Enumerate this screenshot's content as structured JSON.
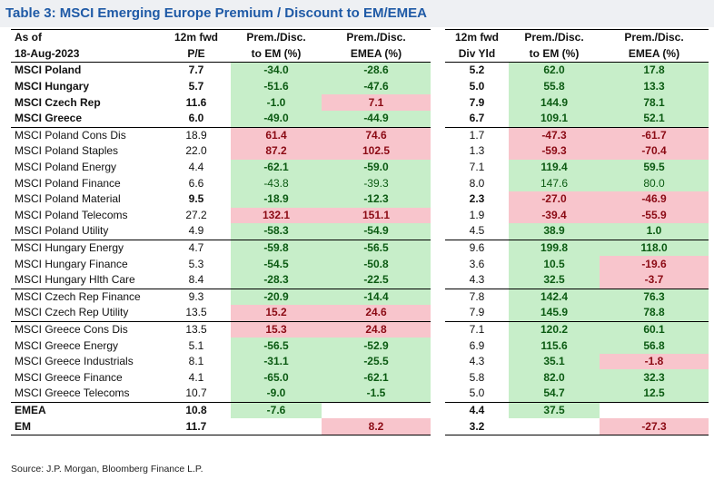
{
  "title": "Table 3: MSCI Emerging Europe Premium / Discount to EM/EMEA",
  "header": {
    "row1": [
      "As of",
      "12m fwd",
      "Prem./Disc.",
      "Prem./Disc.",
      "12m fwd",
      "Prem./Disc.",
      "Prem./Disc."
    ],
    "row2": [
      "18-Aug-2023",
      "P/E",
      "to EM (%)",
      "EMEA (%)",
      "Div Yld",
      "to EM (%)",
      "EMEA (%)"
    ]
  },
  "rows": [
    {
      "cells": [
        "MSCI Poland",
        "7.7",
        "-34.0",
        "-28.6",
        "5.2",
        "62.0",
        "17.8"
      ],
      "bold": true,
      "colors": [
        "",
        "",
        "pos",
        "pos",
        "",
        "pos",
        "pos"
      ]
    },
    {
      "cells": [
        "MSCI Hungary",
        "5.7",
        "-51.6",
        "-47.6",
        "5.0",
        "55.8",
        "13.3"
      ],
      "bold": true,
      "colors": [
        "",
        "",
        "pos",
        "pos",
        "",
        "pos",
        "pos"
      ]
    },
    {
      "cells": [
        "MSCI Czech Rep",
        "11.6",
        "-1.0",
        "7.1",
        "7.9",
        "144.9",
        "78.1"
      ],
      "bold": true,
      "colors": [
        "",
        "",
        "pos",
        "neg",
        "",
        "pos",
        "pos"
      ]
    },
    {
      "cells": [
        "MSCI Greece",
        "6.0",
        "-49.0",
        "-44.9",
        "6.7",
        "109.1",
        "52.1"
      ],
      "bold": true,
      "colors": [
        "",
        "",
        "pos",
        "pos",
        "",
        "pos",
        "pos"
      ]
    },
    {
      "cells": [
        "MSCI Poland Cons Dis",
        "18.9",
        "61.4",
        "74.6",
        "1.7",
        "-47.3",
        "-61.7"
      ],
      "bold": false,
      "boldcols": [
        2,
        3,
        5,
        6
      ],
      "colors": [
        "",
        "",
        "neg",
        "neg",
        "",
        "neg",
        "neg"
      ],
      "top": true
    },
    {
      "cells": [
        "MSCI Poland Staples",
        "22.0",
        "87.2",
        "102.5",
        "1.3",
        "-59.3",
        "-70.4"
      ],
      "bold": false,
      "boldcols": [
        2,
        3,
        5,
        6
      ],
      "colors": [
        "",
        "",
        "neg",
        "neg",
        "",
        "neg",
        "neg"
      ]
    },
    {
      "cells": [
        "MSCI Poland Energy",
        "4.4",
        "-62.1",
        "-59.0",
        "7.1",
        "119.4",
        "59.5"
      ],
      "bold": false,
      "boldcols": [
        2,
        3,
        5,
        6
      ],
      "colors": [
        "",
        "",
        "pos",
        "pos",
        "",
        "pos",
        "pos"
      ]
    },
    {
      "cells": [
        "MSCI Poland Finance",
        "6.6",
        "-43.8",
        "-39.3",
        "8.0",
        "147.6",
        "80.0"
      ],
      "bold": false,
      "boldcols": [],
      "colors": [
        "",
        "",
        "pos",
        "pos",
        "",
        "pos",
        "pos"
      ]
    },
    {
      "cells": [
        "MSCI Poland Material",
        "9.5",
        "-18.9",
        "-12.3",
        "2.3",
        "-27.0",
        "-46.9"
      ],
      "bold": false,
      "boldcols": [
        1,
        2,
        3,
        4,
        5,
        6
      ],
      "colors": [
        "",
        "",
        "pos",
        "pos",
        "",
        "neg",
        "neg"
      ]
    },
    {
      "cells": [
        "MSCI Poland Telecoms",
        "27.2",
        "132.1",
        "151.1",
        "1.9",
        "-39.4",
        "-55.9"
      ],
      "bold": false,
      "boldcols": [
        2,
        3,
        5,
        6
      ],
      "colors": [
        "",
        "",
        "neg",
        "neg",
        "",
        "neg",
        "neg"
      ]
    },
    {
      "cells": [
        "MSCI Poland Utility",
        "4.9",
        "-58.3",
        "-54.9",
        "4.5",
        "38.9",
        "1.0"
      ],
      "bold": false,
      "boldcols": [
        2,
        3,
        5,
        6
      ],
      "colors": [
        "",
        "",
        "pos",
        "pos",
        "",
        "pos",
        "pos"
      ]
    },
    {
      "cells": [
        "MSCI Hungary Energy",
        "4.7",
        "-59.8",
        "-56.5",
        "9.6",
        "199.8",
        "118.0"
      ],
      "bold": false,
      "boldcols": [
        2,
        3,
        5,
        6
      ],
      "colors": [
        "",
        "",
        "pos",
        "pos",
        "",
        "pos",
        "pos"
      ],
      "top": true
    },
    {
      "cells": [
        "MSCI Hungary Finance",
        "5.3",
        "-54.5",
        "-50.8",
        "3.6",
        "10.5",
        "-19.6"
      ],
      "bold": false,
      "boldcols": [
        2,
        3,
        5,
        6
      ],
      "colors": [
        "",
        "",
        "pos",
        "pos",
        "",
        "pos",
        "neg"
      ]
    },
    {
      "cells": [
        "MSCI Hungary Hlth Care",
        "8.4",
        "-28.3",
        "-22.5",
        "4.3",
        "32.5",
        "-3.7"
      ],
      "bold": false,
      "boldcols": [
        2,
        3,
        5,
        6
      ],
      "colors": [
        "",
        "",
        "pos",
        "pos",
        "",
        "pos",
        "neg"
      ]
    },
    {
      "cells": [
        "MSCI Czech Rep Finance",
        "9.3",
        "-20.9",
        "-14.4",
        "7.8",
        "142.4",
        "76.3"
      ],
      "bold": false,
      "boldcols": [
        2,
        3,
        5,
        6
      ],
      "colors": [
        "",
        "",
        "pos",
        "pos",
        "",
        "pos",
        "pos"
      ],
      "top": true
    },
    {
      "cells": [
        "MSCI Czech Rep Utility",
        "13.5",
        "15.2",
        "24.6",
        "7.9",
        "145.9",
        "78.8"
      ],
      "bold": false,
      "boldcols": [
        2,
        3,
        5,
        6
      ],
      "colors": [
        "",
        "",
        "neg",
        "neg",
        "",
        "pos",
        "pos"
      ]
    },
    {
      "cells": [
        "MSCI Greece Cons Dis",
        "13.5",
        "15.3",
        "24.8",
        "7.1",
        "120.2",
        "60.1"
      ],
      "bold": false,
      "boldcols": [
        2,
        3,
        5,
        6
      ],
      "colors": [
        "",
        "",
        "neg",
        "neg",
        "",
        "pos",
        "pos"
      ],
      "top": true
    },
    {
      "cells": [
        "MSCI Greece Energy",
        "5.1",
        "-56.5",
        "-52.9",
        "6.9",
        "115.6",
        "56.8"
      ],
      "bold": false,
      "boldcols": [
        2,
        3,
        5,
        6
      ],
      "colors": [
        "",
        "",
        "pos",
        "pos",
        "",
        "pos",
        "pos"
      ]
    },
    {
      "cells": [
        "MSCI Greece Industrials",
        "8.1",
        "-31.1",
        "-25.5",
        "4.3",
        "35.1",
        "-1.8"
      ],
      "bold": false,
      "boldcols": [
        2,
        3,
        5,
        6
      ],
      "colors": [
        "",
        "",
        "pos",
        "pos",
        "",
        "pos",
        "neg"
      ]
    },
    {
      "cells": [
        "MSCI Greece Finance",
        "4.1",
        "-65.0",
        "-62.1",
        "5.8",
        "82.0",
        "32.3"
      ],
      "bold": false,
      "boldcols": [
        2,
        3,
        5,
        6
      ],
      "colors": [
        "",
        "",
        "pos",
        "pos",
        "",
        "pos",
        "pos"
      ]
    },
    {
      "cells": [
        "MSCI Greece Telecoms",
        "10.7",
        "-9.0",
        "-1.5",
        "5.0",
        "54.7",
        "12.5"
      ],
      "bold": false,
      "boldcols": [
        2,
        3,
        5,
        6
      ],
      "colors": [
        "",
        "",
        "pos",
        "pos",
        "",
        "pos",
        "pos"
      ]
    },
    {
      "cells": [
        "EMEA",
        "10.8",
        "-7.6",
        "",
        "4.4",
        "37.5",
        ""
      ],
      "bold": true,
      "colors": [
        "",
        "",
        "pos",
        "",
        "",
        "pos",
        ""
      ],
      "top": true
    },
    {
      "cells": [
        "EM",
        "11.7",
        "",
        "8.2",
        "3.2",
        "",
        "-27.3"
      ],
      "bold": true,
      "colors": [
        "",
        "",
        "",
        "neg",
        "",
        "",
        "neg"
      ],
      "bottom": true
    }
  ],
  "source": "Source: J.P. Morgan, Bloomberg Finance L.P.",
  "colors": {
    "title": "#1f5aa6",
    "positive_fill": "#c7eec9",
    "negative_fill": "#f8c5cc"
  }
}
